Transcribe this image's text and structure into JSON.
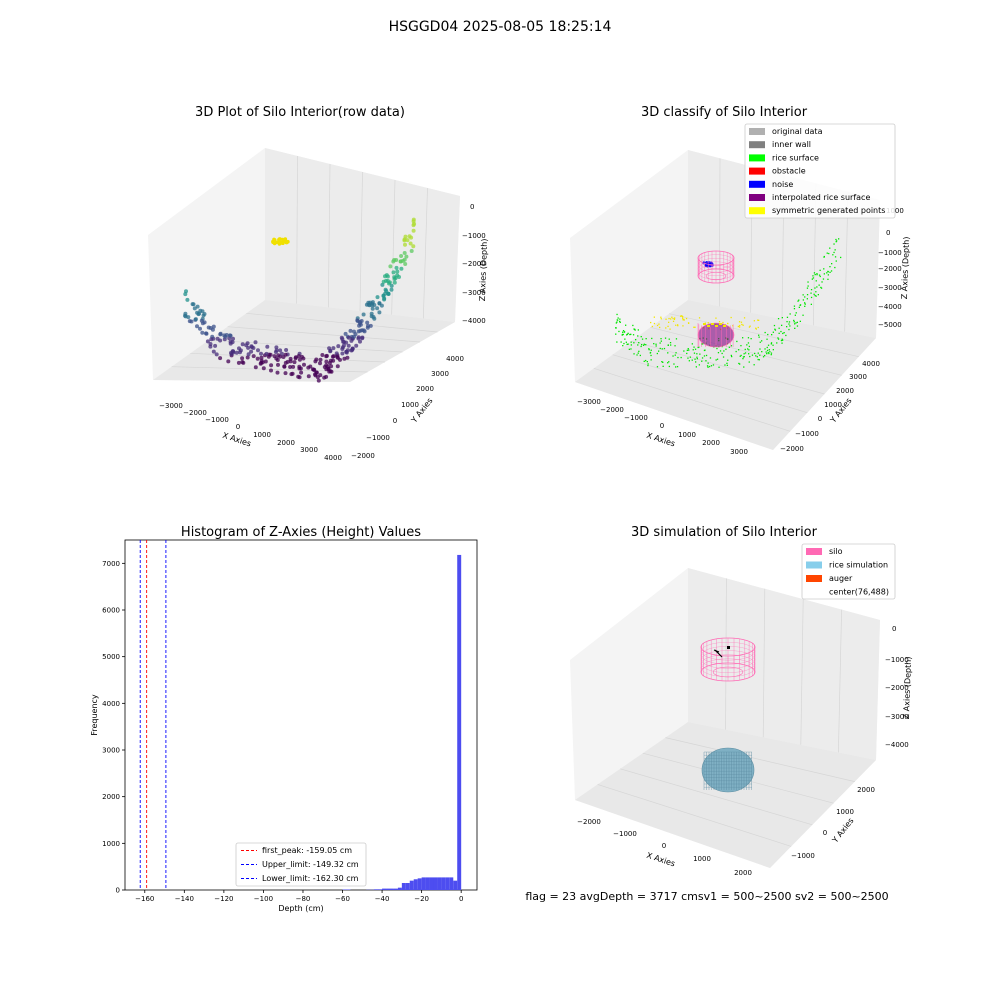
{
  "figure": {
    "suptitle": "HSGGD04 2025-08-05 18:25:14",
    "footer": "flag = 23  avgDepth = 3717 cmsv1 = 500~2500  sv2 = 500~2500"
  },
  "colors": {
    "original_data": "#b0b0b0",
    "inner_wall": "#808080",
    "rice_surface": "#00ff00",
    "obstacle": "#ff0000",
    "noise": "#0000ff",
    "interpolated": "#800080",
    "symmetric": "#ffff00",
    "silo": "#ff69b4",
    "rice_sim": "#87ceeb",
    "auger": "#ff4500",
    "hist_bar": "#4d4df0"
  },
  "panels": {
    "raw": {
      "title": "3D Plot of Silo Interior(row data)",
      "xlabel": "X Axies",
      "ylabel": "Y Axies",
      "zlabel": "Z Axies (Depth)",
      "xticks": [
        "−3000",
        "−2000",
        "−1000",
        "0",
        "1000",
        "2000",
        "3000",
        "4000"
      ],
      "yticks": [
        "−2000",
        "−1000",
        "0",
        "1000",
        "2000",
        "3000",
        "4000"
      ],
      "zticks": [
        "0",
        "−1000",
        "−2000",
        "−3000",
        "−4000"
      ]
    },
    "classify": {
      "title": "3D classify of Silo Interior",
      "xlabel": "X Axies",
      "ylabel": "Y Axies",
      "zlabel": "Z Axies (Depth)",
      "xticks": [
        "−3000",
        "−2000",
        "−1000",
        "0",
        "1000",
        "2000",
        "3000"
      ],
      "yticks": [
        "−2000",
        "−1000",
        "0",
        "1000",
        "2000",
        "3000",
        "4000"
      ],
      "zticks": [
        "1000",
        "0",
        "−1000",
        "−2000",
        "−3000",
        "−4000",
        "−5000"
      ],
      "legend": [
        {
          "label": "original data",
          "color": "#b0b0b0"
        },
        {
          "label": "inner wall",
          "color": "#808080"
        },
        {
          "label": "rice surface",
          "color": "#00ff00"
        },
        {
          "label": "obstacle",
          "color": "#ff0000"
        },
        {
          "label": "noise",
          "color": "#0000ff"
        },
        {
          "label": "interpolated rice surface",
          "color": "#800080"
        },
        {
          "label": "symmetric generated points",
          "color": "#ffff00"
        }
      ]
    },
    "simulation": {
      "title": "3D simulation of Silo Interior",
      "xlabel": "X Axies",
      "ylabel": "Y Axies",
      "zlabel": "Z Axies (Depth)",
      "xticks": [
        "−2000",
        "−1000",
        "0",
        "1000",
        "2000"
      ],
      "yticks": [
        "−1000",
        "0",
        "1000",
        "2000"
      ],
      "zticks": [
        "0",
        "−1000",
        "−2000",
        "−3000",
        "−4000"
      ],
      "legend": [
        {
          "label": "silo",
          "color": "#ff69b4"
        },
        {
          "label": "rice simulation",
          "color": "#87ceeb"
        },
        {
          "label": "auger",
          "color": "#ff4500"
        },
        {
          "label": "center(76,488)",
          "color": "#ffffff"
        }
      ]
    }
  },
  "chart_data": [
    {
      "type": "scatter",
      "title": "3D Plot of Silo Interior(row data)",
      "xlabel": "X Axies",
      "ylabel": "Y Axies",
      "zlabel": "Z Axies (Depth)",
      "xlim": [
        -3500,
        4200
      ],
      "ylim": [
        -2200,
        4500
      ],
      "zlim": [
        -4500,
        300
      ]
    },
    {
      "type": "scatter",
      "title": "3D classify of Silo Interior",
      "xlabel": "X Axies",
      "ylabel": "Y Axies",
      "zlabel": "Z Axies (Depth)",
      "xlim": [
        -3500,
        3500
      ],
      "ylim": [
        -2200,
        4500
      ],
      "zlim": [
        -5500,
        1300
      ]
    },
    {
      "type": "bar",
      "title": "Histogram of Z-Axies (Height) Values",
      "xlabel": "Depth (cm)",
      "ylabel": "Frequency",
      "xlim": [
        -170,
        8
      ],
      "ylim": [
        0,
        7500
      ],
      "xticks": [
        -160,
        -140,
        -120,
        -100,
        -80,
        -60,
        -40,
        -20,
        0
      ],
      "yticks": [
        0,
        1000,
        2000,
        3000,
        4000,
        5000,
        6000,
        7000
      ],
      "bin_width": 2,
      "bins": [
        {
          "x0": -60,
          "value": 10
        },
        {
          "x0": -58,
          "value": 10
        },
        {
          "x0": -48,
          "value": 5
        },
        {
          "x0": -46,
          "value": 5
        },
        {
          "x0": -44,
          "value": 15
        },
        {
          "x0": -42,
          "value": 15
        },
        {
          "x0": -40,
          "value": 30
        },
        {
          "x0": -38,
          "value": 30
        },
        {
          "x0": -36,
          "value": 30
        },
        {
          "x0": -34,
          "value": 30
        },
        {
          "x0": -32,
          "value": 50
        },
        {
          "x0": -30,
          "value": 150
        },
        {
          "x0": -28,
          "value": 150
        },
        {
          "x0": -26,
          "value": 200
        },
        {
          "x0": -24,
          "value": 230
        },
        {
          "x0": -22,
          "value": 250
        },
        {
          "x0": -20,
          "value": 270
        },
        {
          "x0": -18,
          "value": 270
        },
        {
          "x0": -16,
          "value": 270
        },
        {
          "x0": -14,
          "value": 270
        },
        {
          "x0": -12,
          "value": 270
        },
        {
          "x0": -10,
          "value": 270
        },
        {
          "x0": -8,
          "value": 270
        },
        {
          "x0": -6,
          "value": 270
        },
        {
          "x0": -4,
          "value": 200
        },
        {
          "x0": -2,
          "value": 7180
        }
      ],
      "vlines": [
        {
          "label": "first_peak: -159.05 cm",
          "x": -159.05,
          "color": "#ff0000"
        },
        {
          "label": "Upper_limit: -149.32 cm",
          "x": -149.32,
          "color": "#0000ff"
        },
        {
          "label": "Lower_limit: -162.30 cm",
          "x": -162.3,
          "color": "#0000ff"
        }
      ]
    },
    {
      "type": "scatter",
      "title": "3D simulation of Silo Interior",
      "xlabel": "X Axies",
      "ylabel": "Y Axies",
      "zlabel": "Z Axies (Depth)",
      "xlim": [
        -2500,
        2500
      ],
      "ylim": [
        -1500,
        2500
      ],
      "zlim": [
        -4500,
        300
      ]
    }
  ]
}
